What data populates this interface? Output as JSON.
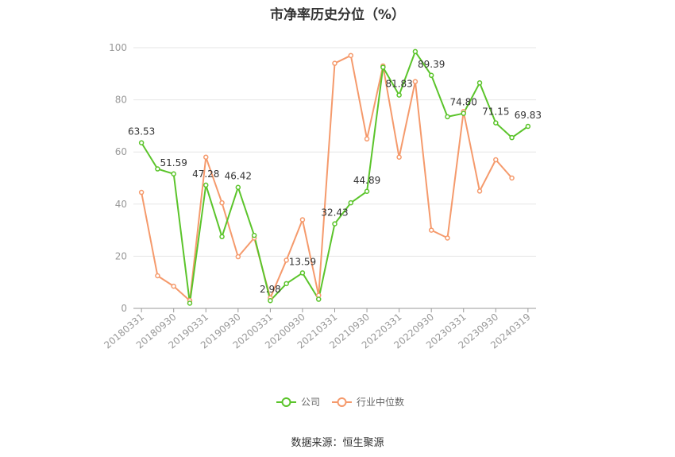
{
  "title": "市净率历史分位（%）",
  "source": "数据来源：恒生聚源",
  "colors": {
    "company": "#5bc42b",
    "industry": "#f59a6c",
    "grid": "#e6e6e6",
    "axis": "#999999"
  },
  "chart_data": {
    "type": "line",
    "title": "市净率历史分位（%）",
    "xlabel": "",
    "ylabel": "",
    "ylim": [
      0,
      100
    ],
    "yticks": [
      0,
      20,
      40,
      60,
      80,
      100
    ],
    "grid": true,
    "legend_position": "bottom",
    "tick_labels": [
      "20180331",
      "20180930",
      "20190331",
      "20190930",
      "20200331",
      "20200930",
      "20210331",
      "20210930",
      "20220331",
      "20220930",
      "20230331",
      "20230930",
      "20240319"
    ],
    "x": [
      "20180331",
      "20180630",
      "20180930",
      "20181231",
      "20190331",
      "20190630",
      "20190930",
      "20191231",
      "20200331",
      "20200630",
      "20200930",
      "20201231",
      "20210331",
      "20210630",
      "20210930",
      "20211231",
      "20220331",
      "20220630",
      "20220930",
      "20221231",
      "20230331",
      "20230630",
      "20230930",
      "20231231",
      "20240319"
    ],
    "series": [
      {
        "name": "公司",
        "values": [
          63.53,
          53.5,
          51.59,
          2.0,
          47.28,
          27.5,
          46.42,
          28.0,
          2.98,
          9.5,
          13.59,
          3.5,
          32.43,
          40.5,
          44.89,
          92.5,
          81.83,
          98.5,
          89.39,
          73.5,
          74.8,
          86.5,
          71.15,
          65.5,
          69.83
        ],
        "labels": {
          "0": "63.53",
          "2": "51.59",
          "4": "47.28",
          "6": "46.42",
          "8": "2.98",
          "10": "13.59",
          "12": "32.43",
          "14": "44.89",
          "16": "81.83",
          "18": "89.39",
          "20": "74.80",
          "22": "71.15",
          "24": "69.83"
        }
      },
      {
        "name": "行业中位数",
        "values": [
          44.5,
          12.5,
          8.5,
          3.0,
          58.0,
          40.5,
          19.8,
          27.0,
          4.0,
          18.5,
          34.0,
          5.0,
          94.0,
          97.0,
          65.0,
          93.0,
          58.0,
          87.0,
          30.0,
          27.0,
          75.5,
          45.0,
          57.0,
          50.0,
          null
        ],
        "labels": {}
      }
    ]
  }
}
